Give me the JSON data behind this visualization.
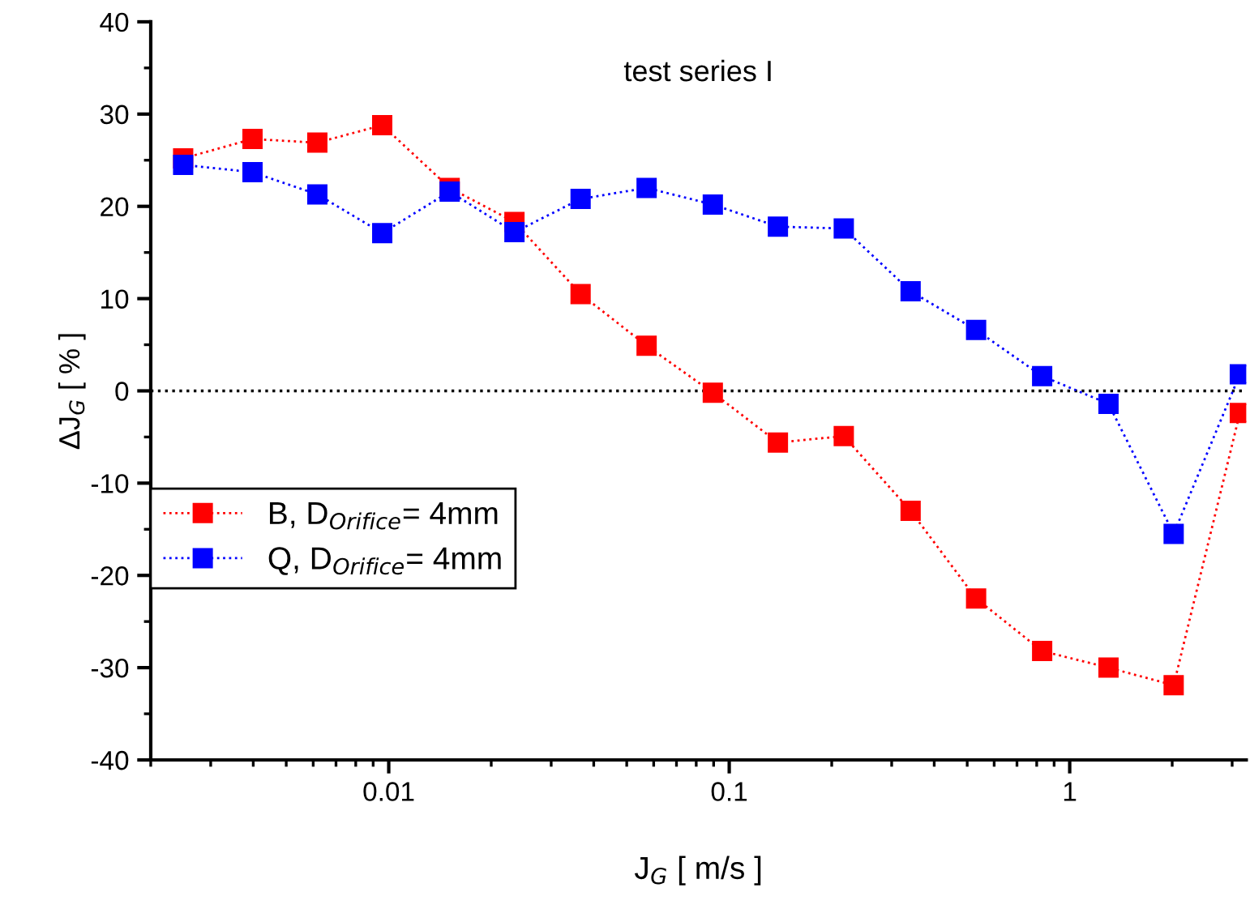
{
  "chart_data": {
    "type": "line",
    "title": "test series I",
    "xlabel": "J$_{G}$ [ m/s ]",
    "ylabel": "ΔJ$_{G}$ [ % ]",
    "x": [
      0.00249,
      0.00398,
      0.00617,
      0.00957,
      0.0151,
      0.0234,
      0.0366,
      0.0572,
      0.0895,
      0.139,
      0.217,
      0.341,
      0.531,
      0.83,
      1.3,
      2.02,
      3.16
    ],
    "series": [
      {
        "name": "B, D$_{Orifice}$= 4mm",
        "color": "#ff0000",
        "values": [
          25.2,
          27.3,
          26.9,
          28.8,
          22.0,
          18.3,
          10.5,
          4.9,
          -0.2,
          -5.6,
          -4.9,
          -13.0,
          -22.5,
          -28.2,
          -30.0,
          -31.9,
          -2.4
        ]
      },
      {
        "name": "Q, D$_{Orifice}$= 4mm",
        "color": "#0000ff",
        "values": [
          24.5,
          23.7,
          21.3,
          17.1,
          21.6,
          17.2,
          20.8,
          22.0,
          20.2,
          17.8,
          17.6,
          10.8,
          6.6,
          1.6,
          -1.4,
          -15.5,
          1.8
        ]
      }
    ],
    "log": "x",
    "xlim": [
      0.002,
      3.3
    ],
    "xticks": [
      0.01,
      0.1,
      1
    ],
    "ylim": [
      -40,
      40
    ],
    "yticks": [
      -40,
      -30,
      -20,
      -10,
      0,
      10,
      20,
      30,
      40
    ],
    "ref_lines": [
      {
        "axis": "y",
        "value": 0,
        "color": "#000000",
        "line_style": "dotted"
      }
    ],
    "marker": "square",
    "line_style": "dotted",
    "legend": "left",
    "grid": false
  }
}
